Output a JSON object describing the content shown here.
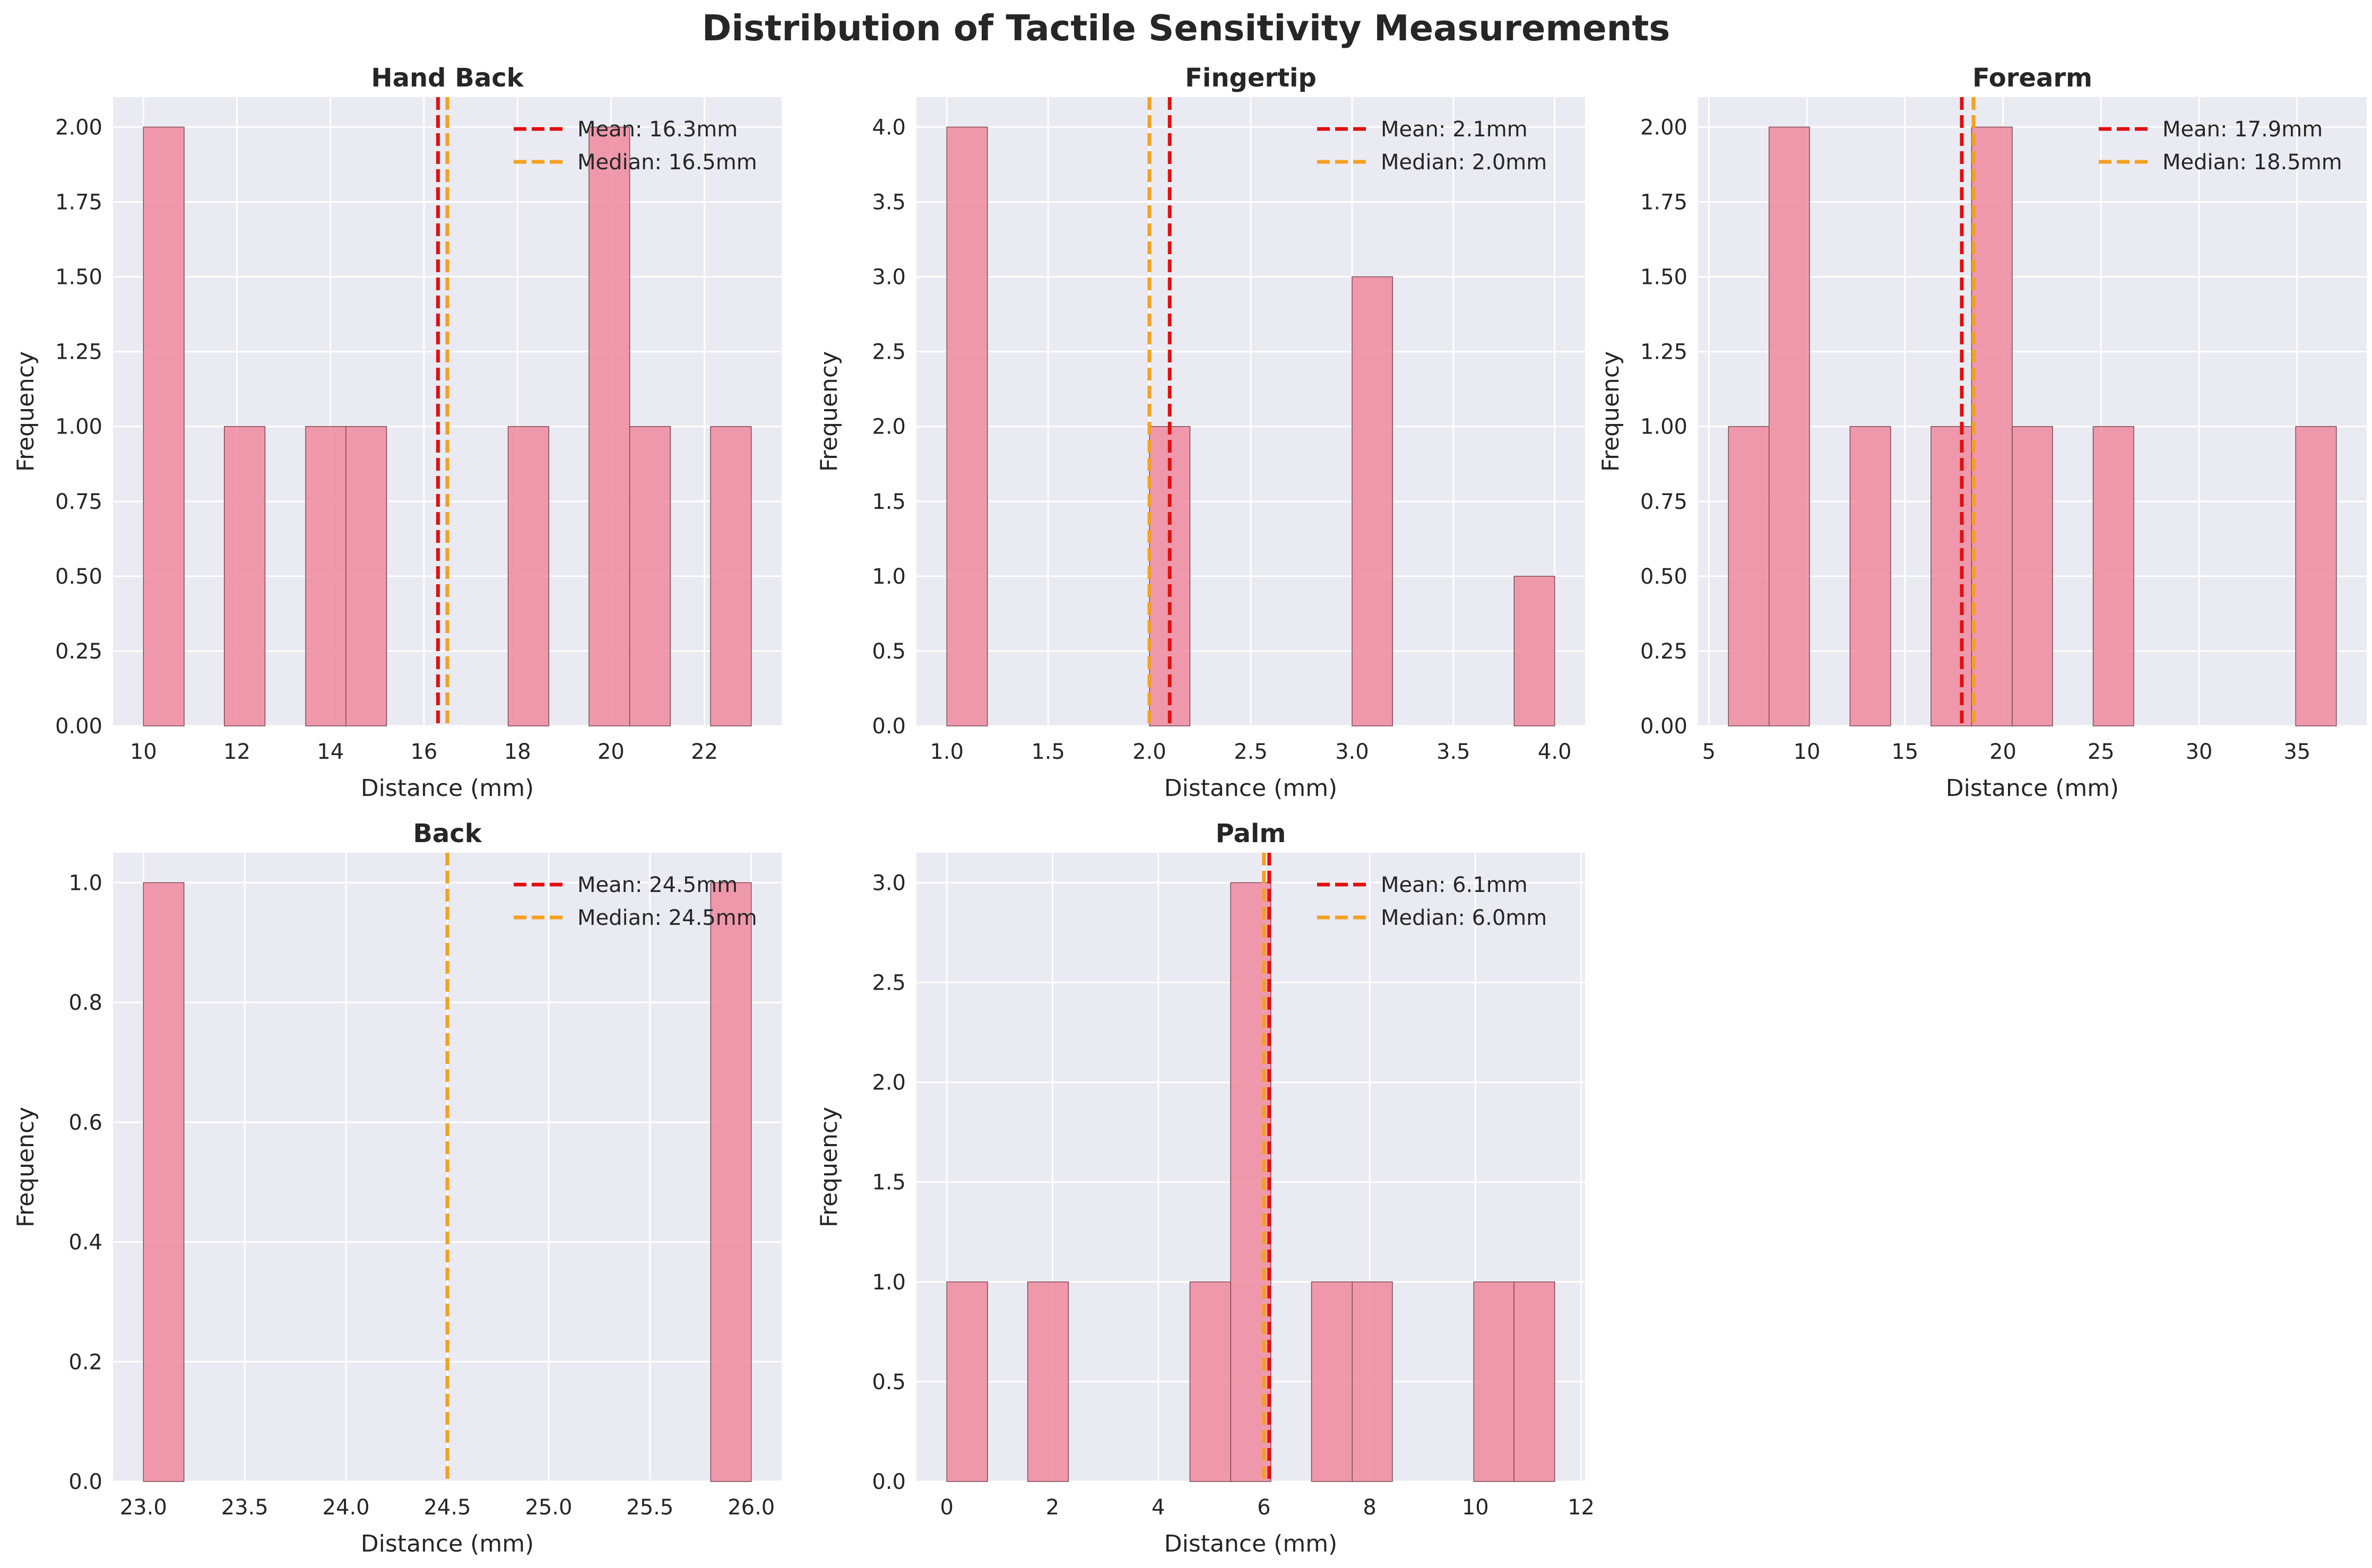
{
  "suptitle": "Distribution of Tactile Sensitivity Measurements",
  "colors": {
    "bar": "#f08aa0",
    "bar_edge": "#7a4a52",
    "mean": "#e01010",
    "median": "#f5a020",
    "panel_bg": "#eaeaf2",
    "grid": "#ffffff"
  },
  "chart_data": [
    {
      "type": "bar",
      "title": "Hand Back",
      "xlabel": "Distance (mm)",
      "ylabel": "Frequency",
      "grid": true,
      "legend_position": "top-right",
      "xlim": [
        9.35,
        23.65
      ],
      "ylim": [
        0,
        2.1
      ],
      "xticks": [
        10,
        12,
        14,
        16,
        18,
        20,
        22
      ],
      "xtick_labels": [
        "10",
        "12",
        "14",
        "16",
        "18",
        "20",
        "22"
      ],
      "yticks": [
        0,
        0.25,
        0.5,
        0.75,
        1.0,
        1.25,
        1.5,
        1.75,
        2.0
      ],
      "ytick_labels": [
        "0.00",
        "0.25",
        "0.50",
        "0.75",
        "1.00",
        "1.25",
        "1.50",
        "1.75",
        "2.00"
      ],
      "bin_edges": [
        10.0,
        10.87,
        11.73,
        12.6,
        13.47,
        14.33,
        15.2,
        16.07,
        16.93,
        17.8,
        18.67,
        19.53,
        20.4,
        21.27,
        22.13,
        23.0
      ],
      "counts": [
        2,
        0,
        1,
        0,
        1,
        1,
        0,
        0,
        0,
        1,
        0,
        2,
        1,
        0,
        1
      ],
      "mean": 16.3,
      "median": 16.5,
      "legend": [
        "Mean: 16.3mm",
        "Median: 16.5mm"
      ]
    },
    {
      "type": "bar",
      "title": "Fingertip",
      "xlabel": "Distance (mm)",
      "ylabel": "Frequency",
      "grid": true,
      "legend_position": "top-right",
      "xlim": [
        0.85,
        4.15
      ],
      "ylim": [
        0,
        4.2
      ],
      "xticks": [
        1.0,
        1.5,
        2.0,
        2.5,
        3.0,
        3.5,
        4.0
      ],
      "xtick_labels": [
        "1.0",
        "1.5",
        "2.0",
        "2.5",
        "3.0",
        "3.5",
        "4.0"
      ],
      "yticks": [
        0,
        0.5,
        1.0,
        1.5,
        2.0,
        2.5,
        3.0,
        3.5,
        4.0
      ],
      "ytick_labels": [
        "0.0",
        "0.5",
        "1.0",
        "1.5",
        "2.0",
        "2.5",
        "3.0",
        "3.5",
        "4.0"
      ],
      "bin_edges": [
        1.0,
        1.2,
        1.4,
        1.6,
        1.8,
        2.0,
        2.2,
        2.4,
        2.6,
        2.8,
        3.0,
        3.2,
        3.4,
        3.6,
        3.8,
        4.0
      ],
      "counts": [
        4,
        0,
        0,
        0,
        0,
        2,
        0,
        0,
        0,
        0,
        3,
        0,
        0,
        0,
        1
      ],
      "mean": 2.1,
      "median": 2.0,
      "legend": [
        "Mean: 2.1mm",
        "Median: 2.0mm"
      ]
    },
    {
      "type": "bar",
      "title": "Forearm",
      "xlabel": "Distance (mm)",
      "ylabel": "Frequency",
      "grid": true,
      "legend_position": "top-right",
      "xlim": [
        4.45,
        38.55
      ],
      "ylim": [
        0,
        2.1
      ],
      "xticks": [
        5,
        10,
        15,
        20,
        25,
        30,
        35
      ],
      "xtick_labels": [
        "5",
        "10",
        "15",
        "20",
        "25",
        "30",
        "35"
      ],
      "yticks": [
        0,
        0.25,
        0.5,
        0.75,
        1.0,
        1.25,
        1.5,
        1.75,
        2.0
      ],
      "ytick_labels": [
        "0.00",
        "0.25",
        "0.50",
        "0.75",
        "1.00",
        "1.25",
        "1.50",
        "1.75",
        "2.00"
      ],
      "bin_edges": [
        6.0,
        8.07,
        10.13,
        12.2,
        14.27,
        16.33,
        18.4,
        20.47,
        22.53,
        24.6,
        26.67,
        28.73,
        30.8,
        32.87,
        34.93,
        37.0
      ],
      "counts": [
        1,
        2,
        0,
        1,
        0,
        1,
        2,
        1,
        0,
        1,
        0,
        0,
        0,
        0,
        1
      ],
      "mean": 17.9,
      "median": 18.5,
      "legend": [
        "Mean: 17.9mm",
        "Median: 18.5mm"
      ]
    },
    {
      "type": "bar",
      "title": "Back",
      "xlabel": "Distance (mm)",
      "ylabel": "Frequency",
      "grid": true,
      "legend_position": "top-right",
      "xlim": [
        22.85,
        26.15
      ],
      "ylim": [
        0,
        1.05
      ],
      "xticks": [
        23.0,
        23.5,
        24.0,
        24.5,
        25.0,
        25.5,
        26.0
      ],
      "xtick_labels": [
        "23.0",
        "23.5",
        "24.0",
        "24.5",
        "25.0",
        "25.5",
        "26.0"
      ],
      "yticks": [
        0,
        0.2,
        0.4,
        0.6,
        0.8,
        1.0
      ],
      "ytick_labels": [
        "0.0",
        "0.2",
        "0.4",
        "0.6",
        "0.8",
        "1.0"
      ],
      "bin_edges": [
        23.0,
        23.2,
        23.4,
        23.6,
        23.8,
        24.0,
        24.2,
        24.4,
        24.6,
        24.8,
        25.0,
        25.2,
        25.4,
        25.6,
        25.8,
        26.0
      ],
      "counts": [
        1,
        0,
        0,
        0,
        0,
        0,
        0,
        0,
        0,
        0,
        0,
        0,
        0,
        0,
        1
      ],
      "mean": 24.5,
      "median": 24.5,
      "legend": [
        "Mean: 24.5mm",
        "Median: 24.5mm"
      ]
    },
    {
      "type": "bar",
      "title": "Palm",
      "xlabel": "Distance (mm)",
      "ylabel": "Frequency",
      "grid": true,
      "legend_position": "top-right",
      "xlim": [
        -0.575,
        12.075
      ],
      "ylim": [
        0,
        3.15
      ],
      "xticks": [
        0,
        2,
        4,
        6,
        8,
        10,
        12
      ],
      "xtick_labels": [
        "0",
        "2",
        "4",
        "6",
        "8",
        "10",
        "12"
      ],
      "yticks": [
        0,
        0.5,
        1.0,
        1.5,
        2.0,
        2.5,
        3.0
      ],
      "ytick_labels": [
        "0.0",
        "0.5",
        "1.0",
        "1.5",
        "2.0",
        "2.5",
        "3.0"
      ],
      "bin_edges": [
        0.0,
        0.77,
        1.53,
        2.3,
        3.07,
        3.83,
        4.6,
        5.37,
        6.13,
        6.9,
        7.67,
        8.43,
        9.2,
        9.97,
        10.73,
        11.5
      ],
      "counts": [
        1,
        0,
        1,
        0,
        0,
        0,
        1,
        3,
        0,
        1,
        1,
        0,
        0,
        1,
        1
      ],
      "mean": 6.1,
      "median": 6.0,
      "legend": [
        "Mean: 6.1mm",
        "Median: 6.0mm"
      ]
    }
  ]
}
